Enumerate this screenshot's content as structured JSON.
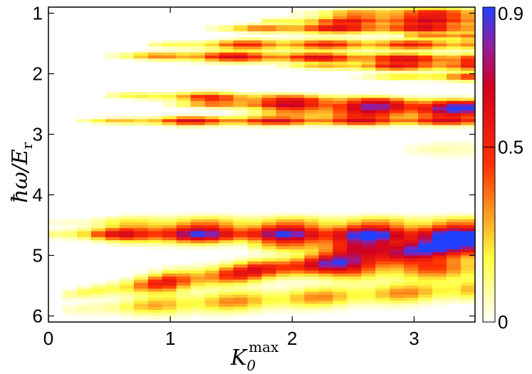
{
  "chart_data": {
    "type": "heatmap",
    "title": "",
    "xlabel": "K_0^max",
    "ylabel": "ħω/E_r",
    "xlim": [
      0,
      3.5
    ],
    "ylim": [
      0.9,
      6.1
    ],
    "y_inverted": true,
    "x_ticks": [
      "0",
      "1",
      "2",
      "3"
    ],
    "y_ticks": [
      "1",
      "2",
      "3",
      "4",
      "5",
      "6"
    ],
    "colorbar": {
      "min": 0,
      "max": 0.9,
      "ticks": [
        "0",
        "0.5",
        "0.9"
      ],
      "colormap": "white-yellow-red-blue",
      "stops": [
        "#ffffff",
        "#ffff30",
        "#ff2000",
        "#c00030",
        "#2020ff"
      ]
    },
    "grid": false,
    "bands": [
      {
        "freq": 1.0,
        "onset": 2.0,
        "slope": -0.0,
        "peak": 0.55,
        "width": 0.06
      },
      {
        "freq": 1.12,
        "onset": 1.7,
        "slope": -0.0,
        "peak": 0.6,
        "width": 0.05
      },
      {
        "freq": 1.25,
        "onset": 1.25,
        "slope": 0.0,
        "peak": 0.65,
        "width": 0.06
      },
      {
        "freq": 1.38,
        "onset": 2.9,
        "slope": 0.0,
        "peak": 0.9,
        "width": 0.05
      },
      {
        "freq": 1.52,
        "onset": 0.8,
        "slope": 0.0,
        "peak": 0.55,
        "width": 0.06
      },
      {
        "freq": 1.7,
        "onset": 0.45,
        "slope": 0.02,
        "peak": 0.65,
        "width": 0.06
      },
      {
        "freq": 1.88,
        "onset": 1.9,
        "slope": 0.0,
        "peak": 0.55,
        "width": 0.05
      },
      {
        "freq": 2.05,
        "onset": 2.5,
        "slope": 0.0,
        "peak": 0.5,
        "width": 0.05
      },
      {
        "freq": 2.35,
        "onset": 0.45,
        "slope": 0.05,
        "peak": 0.55,
        "width": 0.06
      },
      {
        "freq": 2.5,
        "onset": 0.9,
        "slope": 0.03,
        "peak": 0.6,
        "width": 0.05
      },
      {
        "freq": 2.65,
        "onset": 1.5,
        "slope": 0.0,
        "peak": 0.55,
        "width": 0.06
      },
      {
        "freq": 2.78,
        "onset": 0.25,
        "slope": 0.0,
        "peak": 0.65,
        "width": 0.05
      },
      {
        "freq": 3.25,
        "onset": 2.8,
        "slope": 0.0,
        "peak": 0.15,
        "width": 0.12
      },
      {
        "freq": 4.45,
        "onset": 0.0,
        "slope": 0.0,
        "peak": 0.25,
        "width": 0.08
      },
      {
        "freq": 4.65,
        "onset": 0.0,
        "slope": 0.0,
        "peak": 0.9,
        "width": 0.1
      },
      {
        "freq": 4.85,
        "onset": 1.6,
        "slope": 0.0,
        "peak": 0.55,
        "width": 0.12
      },
      {
        "freq": 5.2,
        "onset": 1.6,
        "slope": 0.0,
        "peak": 0.45,
        "width": 0.15
      },
      {
        "freq": 5.65,
        "onset": 0.15,
        "slope": -0.25,
        "peak": 0.6,
        "width": 0.12
      },
      {
        "freq": 5.9,
        "onset": 0.15,
        "slope": -0.1,
        "peak": 0.35,
        "width": 0.12
      }
    ]
  }
}
